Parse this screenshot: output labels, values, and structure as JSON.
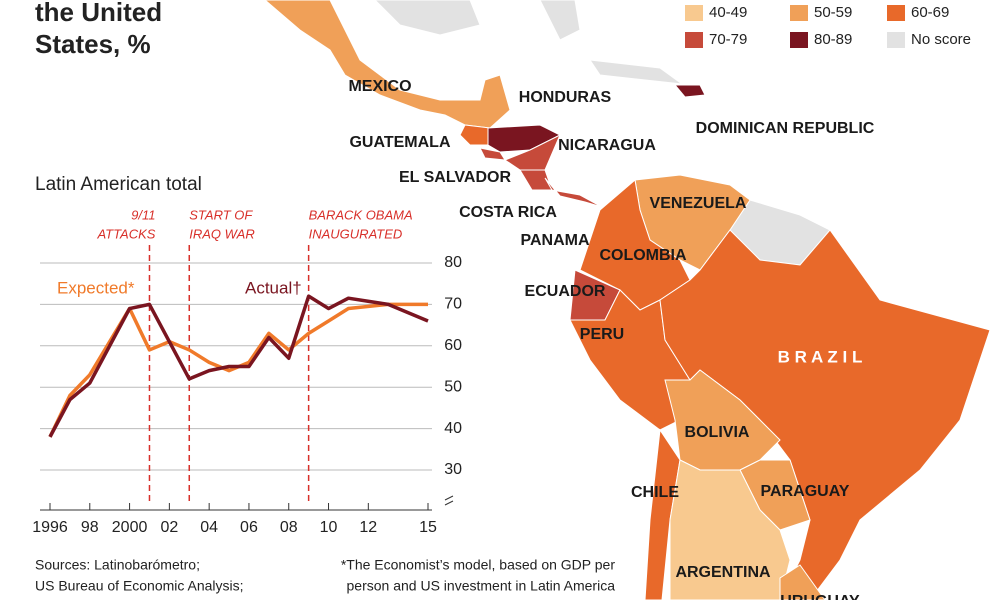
{
  "chart_data": {
    "type": "line",
    "title_lines": [
      "the United",
      "States, %"
    ],
    "subtitle": "Latin American total",
    "x": [
      1996,
      1997,
      1998,
      2000,
      2001,
      2002,
      2003,
      2004,
      2005,
      2006,
      2007,
      2008,
      2009,
      2010,
      2011,
      2013,
      2015
    ],
    "series": [
      {
        "name": "Expected*",
        "color": "#f07a2a",
        "values": [
          38,
          48,
          53,
          69,
          59,
          61,
          59,
          56,
          54,
          56,
          63,
          59,
          63,
          66,
          69,
          70,
          70
        ]
      },
      {
        "name": "Actual†",
        "color": "#7a1520",
        "values": [
          38,
          47,
          51,
          69,
          70,
          61,
          52,
          54,
          55,
          55,
          62,
          57,
          72,
          69,
          71.5,
          70,
          66
        ]
      }
    ],
    "xlim": [
      1996,
      2015
    ],
    "xticks": [
      1996,
      {
        "value": 1998,
        "label": "98"
      },
      2000,
      {
        "value": 2002,
        "label": "02"
      },
      {
        "value": 2004,
        "label": "04"
      },
      {
        "value": 2006,
        "label": "06"
      },
      {
        "value": 2008,
        "label": "08"
      },
      {
        "value": 2010,
        "label": "10"
      },
      {
        "value": 2012,
        "label": "12"
      },
      {
        "value": 2015,
        "label": "15"
      }
    ],
    "ylim": [
      30,
      80
    ],
    "yticks": [
      30,
      40,
      50,
      60,
      70,
      80
    ],
    "grid": true,
    "annotations": [
      {
        "x": 2001,
        "lines": [
          "9/11",
          "ATTACKS"
        ]
      },
      {
        "x": 2003,
        "lines": [
          "START OF",
          "IRAQ WAR"
        ]
      },
      {
        "x": 2009,
        "lines": [
          "BARACK OBAMA",
          "INAUGURATED"
        ]
      }
    ],
    "sources": [
      "Sources: Latinobarómetro;",
      "US Bureau of Economic Analysis;"
    ],
    "footnote": [
      "*The Economist’s model, based on GDP per",
      "person and US investment in Latin America"
    ]
  },
  "map": {
    "legend": [
      {
        "label": "40-49",
        "color": "#f8c98f"
      },
      {
        "label": "50-59",
        "color": "#f0a058"
      },
      {
        "label": "60-69",
        "color": "#e8692a"
      },
      {
        "label": "70-79",
        "color": "#c64a3a"
      },
      {
        "label": "80-89",
        "color": "#7a1520"
      },
      {
        "label": "No score",
        "color": "#e2e2e2"
      }
    ],
    "countries": [
      {
        "name": "MEXICO",
        "bin": 1
      },
      {
        "name": "GUATEMALA",
        "bin": 2
      },
      {
        "name": "HONDURAS",
        "bin": 4
      },
      {
        "name": "EL SALVADOR",
        "bin": 3
      },
      {
        "name": "NICARAGUA",
        "bin": 3
      },
      {
        "name": "COSTA RICA",
        "bin": 3
      },
      {
        "name": "PANAMA",
        "bin": 3
      },
      {
        "name": "DOMINICAN REPUBLIC",
        "bin": 4
      },
      {
        "name": "VENEZUELA",
        "bin": 1
      },
      {
        "name": "COLOMBIA",
        "bin": 2
      },
      {
        "name": "ECUADOR",
        "bin": 3
      },
      {
        "name": "PERU",
        "bin": 2
      },
      {
        "name": "B R A Z I L",
        "bin": 2
      },
      {
        "name": "BOLIVIA",
        "bin": 1
      },
      {
        "name": "PARAGUAY",
        "bin": 1
      },
      {
        "name": "CHILE",
        "bin": 2
      },
      {
        "name": "ARGENTINA",
        "bin": 0
      },
      {
        "name": "URUGUAY",
        "bin": 1
      }
    ]
  }
}
